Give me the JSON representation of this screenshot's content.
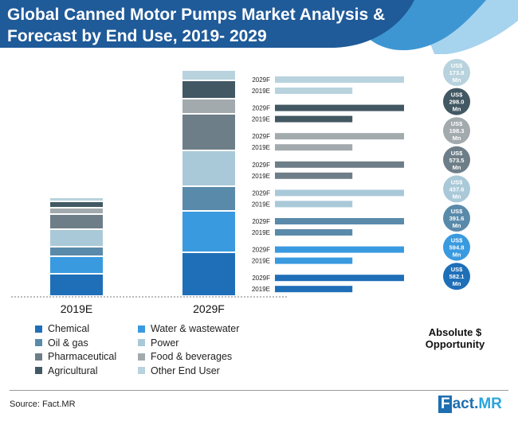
{
  "title": "Global Canned Motor Pumps Market Analysis & Forecast by End Use, 2019- 2029",
  "source": "Source: Fact.MR",
  "logo": {
    "prefix": "F",
    "middle": "act.",
    "suffix": "MR"
  },
  "absolute_label": "Absolute $ Opportunity",
  "colors": {
    "header_dark": "#1f5a99",
    "header_mid": "#3d96d2",
    "header_light": "#a6d3ee",
    "label_text": "#222222"
  },
  "chart_data": {
    "type": "bar",
    "title": "Global Canned Motor Pumps Market Analysis & Forecast by End Use, 2019- 2029",
    "stacked": {
      "categories": [
        "2019E",
        "2029F"
      ],
      "segments_bottom_to_top": [
        "Chemical",
        "Water & wastewater",
        "Oil & gas",
        "Power",
        "Pharmaceutical",
        "Food & beverages",
        "Agricultural",
        "Other End User"
      ],
      "values_relative_height": {
        "2019E": [
          28,
          22,
          12,
          22,
          19,
          8,
          8,
          5
        ],
        "2029F": [
          55,
          52,
          31,
          45,
          46,
          19,
          23,
          13
        ]
      }
    },
    "legend": [
      {
        "name": "Chemical",
        "color": "#1f6fb8"
      },
      {
        "name": "Water & wastewater",
        "color": "#3a9ae0"
      },
      {
        "name": "Oil & gas",
        "color": "#5a8aaa"
      },
      {
        "name": "Power",
        "color": "#a9c9d8"
      },
      {
        "name": "Pharmaceutical",
        "color": "#6e7e88"
      },
      {
        "name": "Food & beverages",
        "color": "#a3aaae"
      },
      {
        "name": "Agricultural",
        "color": "#425863"
      },
      {
        "name": "Other End User",
        "color": "#b8d3dd"
      }
    ],
    "horizontal_bars": [
      {
        "segment": "Other End User",
        "bar_2029F": 100,
        "bar_2019E": 60,
        "color": "#b8d3dd",
        "circle_color": "#b8d3dd",
        "opportunity": [
          "US$",
          "173.8",
          "Mn"
        ]
      },
      {
        "segment": "Agricultural",
        "bar_2029F": 100,
        "bar_2019E": 60,
        "color": "#425863",
        "circle_color": "#425863",
        "opportunity": [
          "US$",
          "298.0",
          "Mn"
        ]
      },
      {
        "segment": "Food & beverages",
        "bar_2029F": 100,
        "bar_2019E": 60,
        "color": "#a3aaae",
        "circle_color": "#a3aaae",
        "opportunity": [
          "US$",
          "198.3",
          "Mn"
        ]
      },
      {
        "segment": "Pharmaceutical",
        "bar_2029F": 100,
        "bar_2019E": 60,
        "color": "#6e7e88",
        "circle_color": "#6e7e88",
        "opportunity": [
          "US$",
          "573.5",
          "Mn"
        ]
      },
      {
        "segment": "Power",
        "bar_2029F": 100,
        "bar_2019E": 60,
        "color": "#a9c9d8",
        "circle_color": "#a9c9d8",
        "opportunity": [
          "US$",
          "437.6",
          "Mn"
        ]
      },
      {
        "segment": "Oil & gas",
        "bar_2029F": 100,
        "bar_2019E": 60,
        "color": "#5a8aaa",
        "circle_color": "#5a8aaa",
        "opportunity": [
          "US$",
          "391.6",
          "Mn"
        ]
      },
      {
        "segment": "Water & wastewater",
        "bar_2029F": 100,
        "bar_2019E": 60,
        "color": "#3a9ae0",
        "circle_color": "#3a9ae0",
        "opportunity": [
          "US$",
          "594.8",
          "Mn"
        ]
      },
      {
        "segment": "Chemical",
        "bar_2029F": 100,
        "bar_2019E": 60,
        "color": "#1f6fb8",
        "circle_color": "#1f6fb8",
        "opportunity": [
          "US$",
          "582.1",
          "Mn"
        ]
      }
    ],
    "bar_labels": [
      "2029F",
      "2019E"
    ]
  }
}
